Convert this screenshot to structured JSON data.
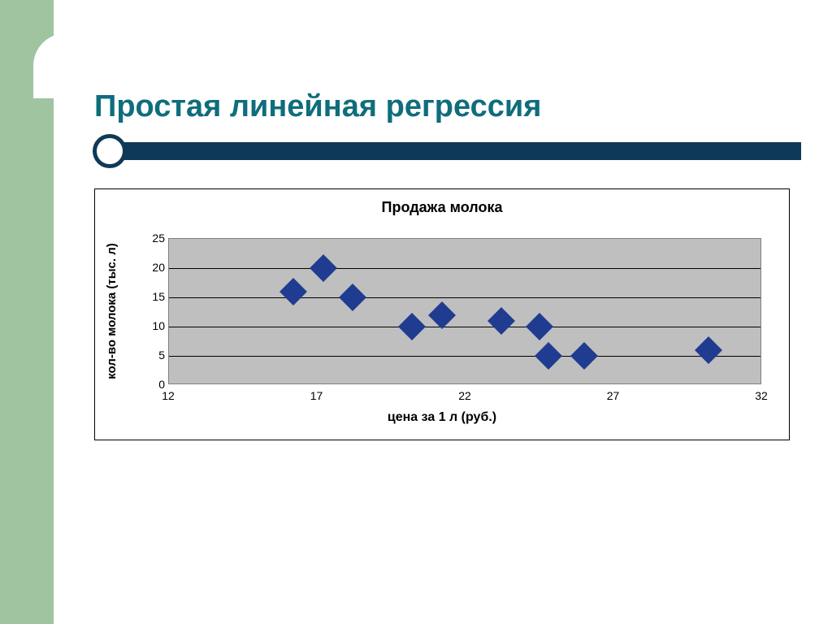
{
  "colors": {
    "left_band": "#a0c4a0",
    "title_text": "#0f6d7c",
    "rule_bar": "#0f3a57",
    "plot_bg": "#bfbfbf",
    "plot_border": "#7f7f7f",
    "gridline": "#000000",
    "marker": "#203c90",
    "text": "#000000",
    "slide_bg": "#ffffff"
  },
  "slide": {
    "title": "Простая линейная регрессия"
  },
  "chart": {
    "type": "scatter",
    "title": "Продажа молока",
    "title_fontsize": 18,
    "xlabel": "цена за 1 л (руб.)",
    "ylabel": "кол-во молока (тыс. л)",
    "label_fontsize": 16,
    "xlim": [
      12,
      32
    ],
    "ylim": [
      0,
      25
    ],
    "xticks": [
      12,
      17,
      22,
      27,
      32
    ],
    "yticks": [
      0,
      5,
      10,
      15,
      20,
      25
    ],
    "tick_fontsize": 14,
    "grid_y": true,
    "grid_x": false,
    "marker_style": "diamond",
    "marker_size": 24,
    "marker_color": "#203c90",
    "background_color": "#bfbfbf",
    "grid_color": "#000000",
    "points": [
      {
        "x": 16.2,
        "y": 16
      },
      {
        "x": 17.2,
        "y": 20
      },
      {
        "x": 18.2,
        "y": 15
      },
      {
        "x": 20.2,
        "y": 10
      },
      {
        "x": 21.2,
        "y": 12
      },
      {
        "x": 23.2,
        "y": 11
      },
      {
        "x": 24.5,
        "y": 10
      },
      {
        "x": 24.8,
        "y": 5
      },
      {
        "x": 26.0,
        "y": 5
      },
      {
        "x": 30.2,
        "y": 6
      }
    ]
  }
}
